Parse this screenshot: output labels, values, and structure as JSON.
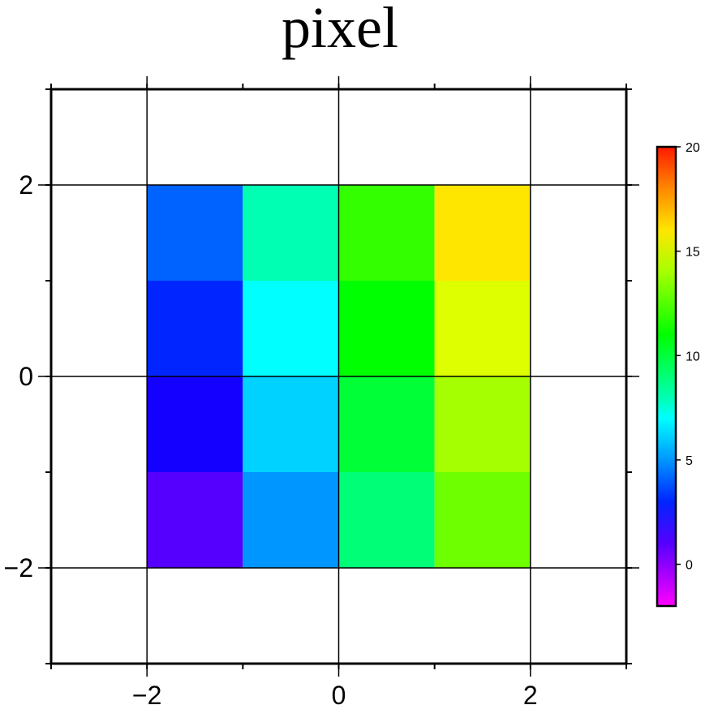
{
  "chart_data": {
    "type": "heatmap",
    "title": "pixel",
    "xlabel": "",
    "ylabel": "",
    "xlim": [
      -3,
      3
    ],
    "ylim": [
      -3,
      3
    ],
    "x_ticks": [
      -2,
      0,
      2
    ],
    "x_tick_labels": [
      "−2",
      "0",
      "2"
    ],
    "y_ticks": [
      -2,
      0,
      2
    ],
    "y_tick_labels": [
      "−2",
      "0",
      "2"
    ],
    "minor_ticks": [
      -3,
      -2,
      -1,
      0,
      1,
      2,
      3
    ],
    "grid": true,
    "grid_lines": [
      -2,
      0,
      2
    ],
    "cells": [
      {
        "x0": -2,
        "x1": -1,
        "y0": 1,
        "y1": 2,
        "value": 4,
        "color": "#0062ff"
      },
      {
        "x0": -1,
        "x1": 0,
        "y0": 1,
        "y1": 2,
        "value": 8,
        "color": "#00ffb2"
      },
      {
        "x0": 0,
        "x1": 1,
        "y0": 1,
        "y1": 2,
        "value": 12,
        "color": "#33ff00"
      },
      {
        "x0": 1,
        "x1": 2,
        "y0": 1,
        "y1": 2,
        "value": 16,
        "color": "#ffe600"
      },
      {
        "x0": -2,
        "x1": -1,
        "y0": 0,
        "y1": 1,
        "value": 3,
        "color": "#0025ff"
      },
      {
        "x0": -1,
        "x1": 0,
        "y0": 0,
        "y1": 1,
        "value": 7,
        "color": "#00ffff"
      },
      {
        "x0": 0,
        "x1": 1,
        "y0": 0,
        "y1": 1,
        "value": 11,
        "color": "#00ff00"
      },
      {
        "x0": 1,
        "x1": 2,
        "y0": 0,
        "y1": 1,
        "value": 15,
        "color": "#ddff00"
      },
      {
        "x0": -2,
        "x1": -1,
        "y0": -1,
        "y1": 0,
        "value": 2,
        "color": "#1400ff"
      },
      {
        "x0": -1,
        "x1": 0,
        "y0": -1,
        "y1": 0,
        "value": 6,
        "color": "#00d2ff"
      },
      {
        "x0": 0,
        "x1": 1,
        "y0": -1,
        "y1": 0,
        "value": 10,
        "color": "#00ff36"
      },
      {
        "x0": 1,
        "x1": 2,
        "y0": -1,
        "y1": 0,
        "value": 14,
        "color": "#a6ff00"
      },
      {
        "x0": -2,
        "x1": -1,
        "y0": -2,
        "y1": -1,
        "value": 1,
        "color": "#5500ff"
      },
      {
        "x0": -1,
        "x1": 0,
        "y0": -2,
        "y1": -1,
        "value": 5,
        "color": "#0096ff"
      },
      {
        "x0": 0,
        "x1": 1,
        "y0": -2,
        "y1": -1,
        "value": 9,
        "color": "#00ff77"
      },
      {
        "x0": 1,
        "x1": 2,
        "y0": -2,
        "y1": -1,
        "value": 13,
        "color": "#6eff00"
      }
    ],
    "colorbar": {
      "min": -2,
      "max": 20,
      "ticks": [
        0,
        5,
        10,
        15,
        20
      ],
      "tick_labels": [
        "0",
        "5",
        "10",
        "15",
        "20"
      ],
      "stops": [
        {
          "value": -2,
          "color": "#ff00ff"
        },
        {
          "value": 1,
          "color": "#5500ff"
        },
        {
          "value": 3,
          "color": "#0025ff"
        },
        {
          "value": 5,
          "color": "#0096ff"
        },
        {
          "value": 7,
          "color": "#00ffff"
        },
        {
          "value": 8,
          "color": "#00ffb2"
        },
        {
          "value": 11,
          "color": "#00ff00"
        },
        {
          "value": 14,
          "color": "#a6ff00"
        },
        {
          "value": 16,
          "color": "#ffe600"
        },
        {
          "value": 18,
          "color": "#ff8800"
        },
        {
          "value": 20,
          "color": "#ff1a00"
        }
      ]
    }
  }
}
